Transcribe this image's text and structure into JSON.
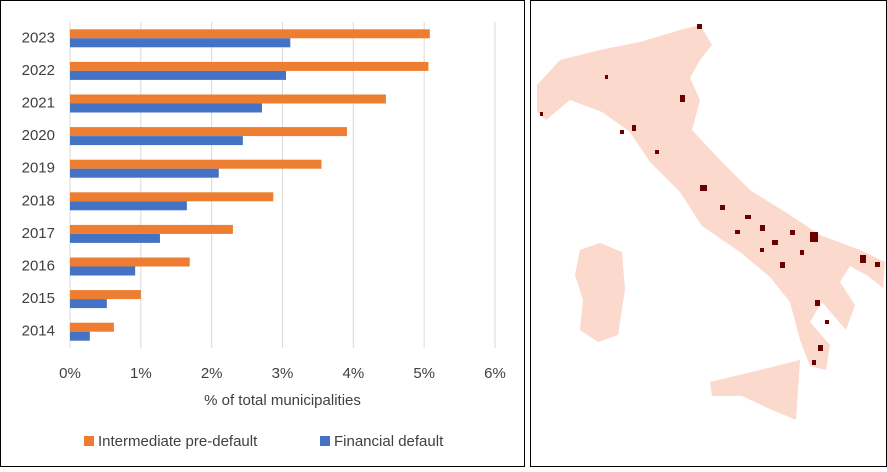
{
  "chart_data": {
    "type": "bar",
    "orientation": "horizontal",
    "categories": [
      "2014",
      "2015",
      "2016",
      "2017",
      "2018",
      "2019",
      "2020",
      "2021",
      "2022",
      "2023"
    ],
    "series": [
      {
        "name": "Intermediate pre-default",
        "color": "#ed7d31",
        "values": [
          0.62,
          1.0,
          1.69,
          2.3,
          2.87,
          3.55,
          3.91,
          4.46,
          5.06,
          5.08
        ]
      },
      {
        "name": "Financial default",
        "color": "#4472c4",
        "values": [
          0.28,
          0.52,
          0.92,
          1.27,
          1.65,
          2.1,
          2.44,
          2.71,
          3.05,
          3.11
        ]
      }
    ],
    "xlabel": "% of total municipalities",
    "xlim": [
      0,
      6
    ],
    "xticks": [
      {
        "value": 0,
        "label": "0%"
      },
      {
        "value": 1,
        "label": "1%"
      },
      {
        "value": 2,
        "label": "2%"
      },
      {
        "value": 3,
        "label": "3%"
      },
      {
        "value": 4,
        "label": "4%"
      },
      {
        "value": 5,
        "label": "5%"
      },
      {
        "value": 6,
        "label": "6%"
      }
    ],
    "grid": true,
    "legend": "bottom"
  }
}
